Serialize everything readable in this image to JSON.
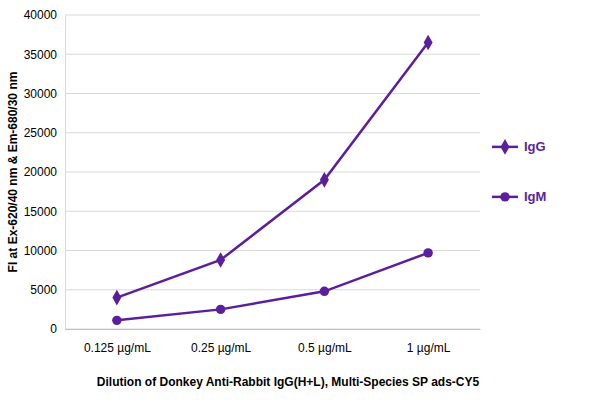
{
  "chart_data": {
    "type": "line",
    "x_label": "Dilution of Donkey Anti-Rabbit IgG(H+L), Multi-Species SP ads-CY5",
    "y_label": "FI at Ex-620/40 nm & Em-680/30 nm",
    "categories": [
      "0.125 µg/mL",
      "0.25 µg/mL",
      "0.5 µg/mL",
      "1 µg/mL"
    ],
    "series": [
      {
        "name": "IgG",
        "color": "#5b1f9e",
        "marker": "diamond",
        "values": [
          4000,
          8800,
          19000,
          36500
        ]
      },
      {
        "name": "IgM",
        "color": "#5b1f9e",
        "marker": "circle",
        "values": [
          1100,
          2500,
          4800,
          9700
        ]
      }
    ],
    "ylim": [
      0,
      40000
    ],
    "yticks": [
      0,
      5000,
      10000,
      15000,
      20000,
      25000,
      30000,
      35000,
      40000
    ],
    "grid": true,
    "legend": "right"
  }
}
